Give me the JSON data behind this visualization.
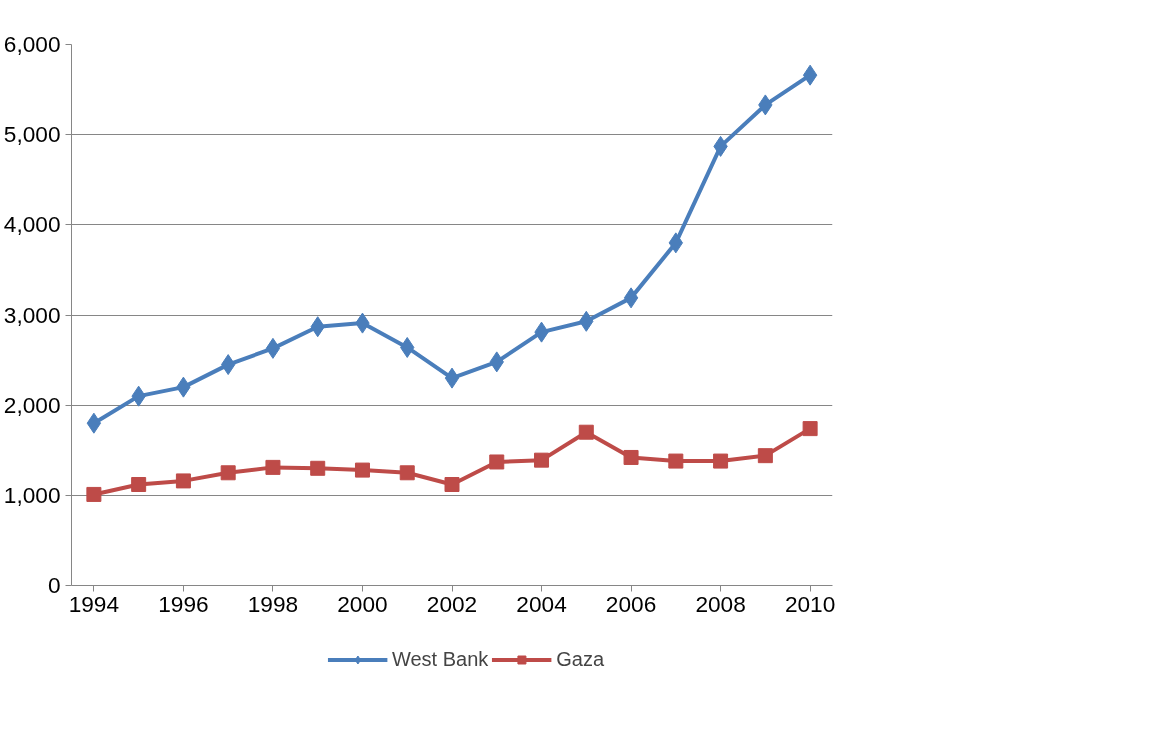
{
  "chart_data": {
    "type": "line",
    "x": [
      1994,
      1995,
      1996,
      1997,
      1998,
      1999,
      2000,
      2001,
      2002,
      2003,
      2004,
      2005,
      2006,
      2007,
      2008,
      2009,
      2010
    ],
    "series": [
      {
        "name": "West Bank",
        "color": "#4a7ebb",
        "marker": "diamond",
        "values": [
          1800,
          2100,
          2200,
          2450,
          2630,
          2870,
          2910,
          2640,
          2300,
          2480,
          2810,
          2930,
          3190,
          3800,
          4870,
          5330,
          5660
        ]
      },
      {
        "name": "Gaza",
        "color": "#be4b48",
        "marker": "square",
        "values": [
          1010,
          1120,
          1160,
          1250,
          1310,
          1300,
          1280,
          1250,
          1120,
          1370,
          1390,
          1700,
          1420,
          1380,
          1380,
          1440,
          1740
        ]
      }
    ],
    "xlim": [
      1993.5,
      2010.5
    ],
    "xticks": [
      {
        "value": 1994,
        "label": "1994"
      },
      {
        "value": 1996,
        "label": "1996"
      },
      {
        "value": 1998,
        "label": "1998"
      },
      {
        "value": 2000,
        "label": "2000"
      },
      {
        "value": 2002,
        "label": "2002"
      },
      {
        "value": 2004,
        "label": "2004"
      },
      {
        "value": 2006,
        "label": "2006"
      },
      {
        "value": 2008,
        "label": "2008"
      },
      {
        "value": 2010,
        "label": "2010"
      }
    ],
    "ylim": [
      0,
      6000
    ],
    "yticks": [
      {
        "value": 0,
        "label": "0"
      },
      {
        "value": 1000,
        "label": "1,000"
      },
      {
        "value": 2000,
        "label": "2,000"
      },
      {
        "value": 3000,
        "label": "3,000"
      },
      {
        "value": 4000,
        "label": "4,000"
      },
      {
        "value": 5000,
        "label": "5,000"
      },
      {
        "value": 6000,
        "label": "6,000"
      }
    ],
    "grid": "y",
    "legend": "bottom",
    "line_style": "solid"
  }
}
